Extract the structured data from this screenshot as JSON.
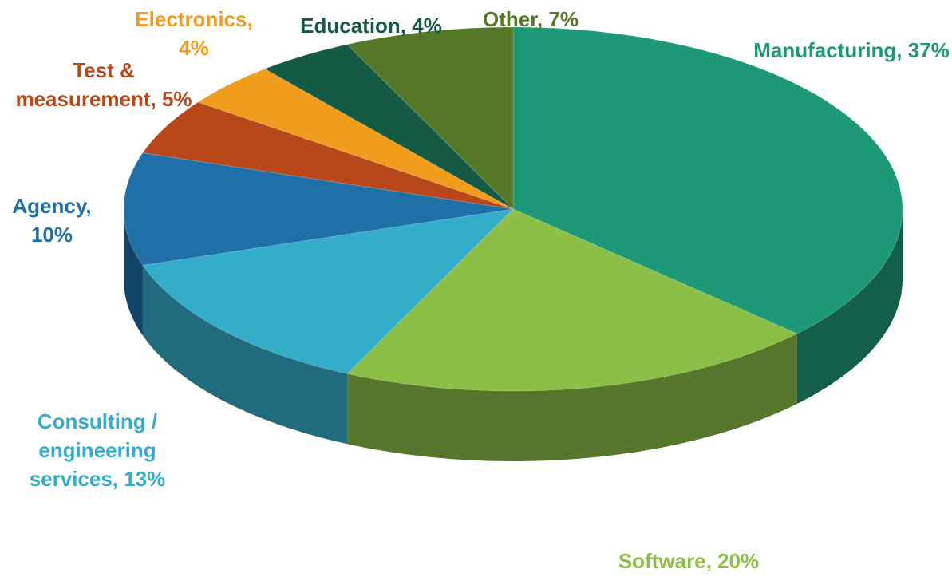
{
  "chart_data": {
    "type": "pie",
    "three_d": true,
    "values": [
      37,
      20,
      13,
      10,
      5,
      4,
      4,
      7
    ],
    "value_labels": [
      "Manufacturing, 37%",
      "Software, 20%",
      "Consulting / engineering services, 13%",
      "Agency, 10%",
      "Test & measurement, 5%",
      "Electronics, 4%",
      "Education, 4%",
      "Other, 7%"
    ],
    "colors": [
      "#1e9977",
      "#8bbf45",
      "#33adca",
      "#1f6fa8",
      "#b8481a",
      "#f09c1c",
      "#145a45",
      "#557828"
    ],
    "label_colors": [
      "#1e9977",
      "#8bbf45",
      "#33adca",
      "#1f6fa8",
      "#b8481a",
      "#f09c1c",
      "#145a45",
      "#557828"
    ]
  }
}
